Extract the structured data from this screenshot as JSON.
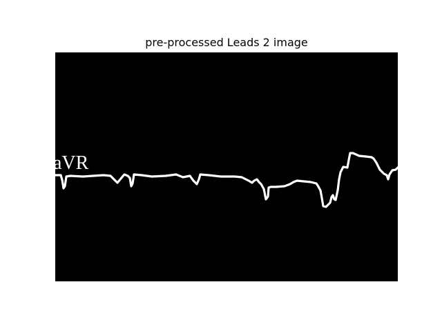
{
  "title": "pre-processed Leads 2 image",
  "image": {
    "lead_label": "aVR",
    "background_color": "#000000",
    "trace_color": "#ffffff"
  }
}
